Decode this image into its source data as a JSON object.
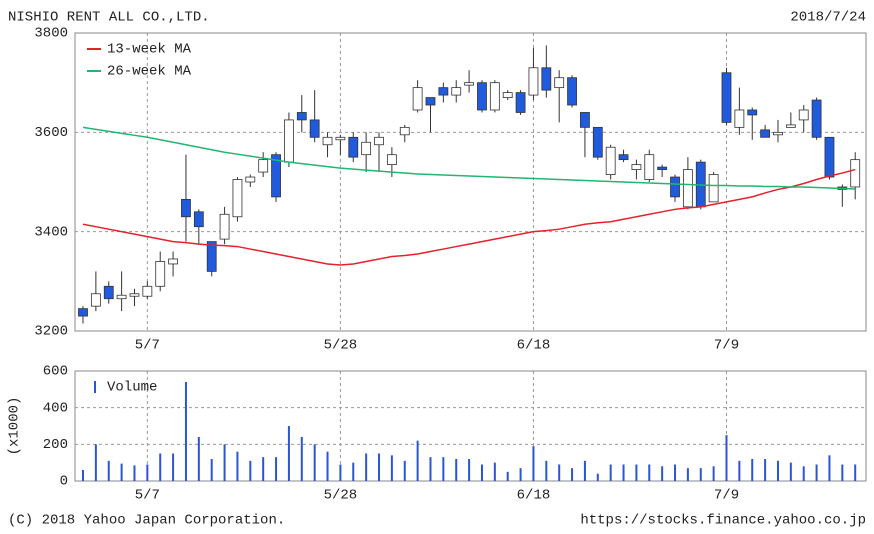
{
  "chart_data": [
    {
      "type": "candlestick",
      "title": "NISHIO RENT ALL CO.,LTD.",
      "date": "2018/7/24",
      "categories": [
        null,
        null,
        null,
        null,
        null,
        "5/7",
        null,
        null,
        null,
        null,
        null,
        null,
        null,
        null,
        null,
        null,
        null,
        null,
        null,
        null,
        "5/28",
        null,
        null,
        null,
        null,
        null,
        null,
        null,
        null,
        null,
        null,
        null,
        null,
        null,
        null,
        "6/18",
        null,
        null,
        null,
        null,
        null,
        null,
        null,
        null,
        null,
        null,
        null,
        null,
        null,
        null,
        "7/9",
        null,
        null,
        null,
        null,
        null,
        null,
        null,
        null,
        null,
        null
      ],
      "open": [
        3245,
        3250,
        3290,
        3265,
        3270,
        3270,
        3290,
        3335,
        3465,
        3440,
        3380,
        3385,
        3430,
        3500,
        3520,
        3555,
        3540,
        3640,
        3625,
        3575,
        3585,
        3590,
        3555,
        3575,
        3535,
        3595,
        3645,
        3670,
        3690,
        3675,
        3695,
        3700,
        3645,
        3670,
        3680,
        3675,
        3730,
        3690,
        3710,
        3640,
        3610,
        3515,
        3555,
        3525,
        3505,
        3530,
        3510,
        3450,
        3540,
        3460,
        3720,
        3610,
        3645,
        3605,
        3595,
        3610,
        3625,
        3665,
        3590,
        3490,
        3490
      ],
      "high": [
        3250,
        3320,
        3300,
        3320,
        3285,
        3300,
        3360,
        3360,
        3555,
        3445,
        3380,
        3450,
        3510,
        3515,
        3560,
        3560,
        3640,
        3675,
        3685,
        3600,
        3595,
        3600,
        3600,
        3600,
        3570,
        3615,
        3705,
        3670,
        3700,
        3705,
        3725,
        3705,
        3705,
        3685,
        3685,
        3770,
        3775,
        3725,
        3715,
        3640,
        3610,
        3575,
        3565,
        3545,
        3565,
        3535,
        3515,
        3550,
        3545,
        3520,
        3730,
        3690,
        3650,
        3615,
        3625,
        3640,
        3655,
        3670,
        3590,
        3495,
        3560
      ],
      "low": [
        3215,
        3240,
        3255,
        3240,
        3250,
        3265,
        3280,
        3310,
        3380,
        3375,
        3310,
        3375,
        3420,
        3490,
        3510,
        3460,
        3530,
        3600,
        3580,
        3550,
        3555,
        3540,
        3520,
        3520,
        3510,
        3580,
        3640,
        3600,
        3660,
        3660,
        3680,
        3640,
        3640,
        3665,
        3635,
        3665,
        3670,
        3620,
        3650,
        3550,
        3545,
        3505,
        3540,
        3505,
        3500,
        3510,
        3460,
        3445,
        3445,
        3460,
        3615,
        3595,
        3585,
        3595,
        3580,
        3610,
        3600,
        3585,
        3505,
        3450,
        3465
      ],
      "close": [
        3230,
        3275,
        3265,
        3272,
        3275,
        3290,
        3340,
        3345,
        3430,
        3410,
        3320,
        3435,
        3505,
        3510,
        3545,
        3470,
        3625,
        3625,
        3590,
        3590,
        3590,
        3550,
        3580,
        3590,
        3555,
        3610,
        3690,
        3655,
        3675,
        3690,
        3700,
        3645,
        3700,
        3680,
        3640,
        3730,
        3685,
        3710,
        3655,
        3610,
        3550,
        3570,
        3545,
        3535,
        3555,
        3525,
        3470,
        3525,
        3450,
        3515,
        3620,
        3645,
        3635,
        3590,
        3600,
        3615,
        3645,
        3590,
        3510,
        3485,
        3545
      ],
      "up_color": "#ffffff",
      "down_color": "#1f5bdc",
      "series": [
        {
          "name": "13-week MA",
          "color": "#e8202a",
          "values": [
            3415,
            3410,
            3405,
            3400,
            3395,
            3390,
            3385,
            3380,
            3378,
            3375,
            3373,
            3372,
            3370,
            3365,
            3360,
            3355,
            3350,
            3345,
            3340,
            3335,
            3333,
            3335,
            3340,
            3345,
            3350,
            3352,
            3355,
            3360,
            3365,
            3370,
            3375,
            3380,
            3385,
            3390,
            3395,
            3400,
            3402,
            3405,
            3410,
            3415,
            3418,
            3420,
            3425,
            3430,
            3435,
            3440,
            3445,
            3448,
            3450,
            3455,
            3460,
            3465,
            3470,
            3478,
            3485,
            3490,
            3497,
            3505,
            3512,
            3518,
            3525
          ]
        },
        {
          "name": "26-week MA",
          "color": "#22b573",
          "values": [
            3610,
            3606,
            3602,
            3598,
            3594,
            3590,
            3585,
            3580,
            3575,
            3570,
            3565,
            3560,
            3556,
            3552,
            3548,
            3544,
            3540,
            3537,
            3534,
            3531,
            3528,
            3526,
            3524,
            3522,
            3520,
            3518,
            3516,
            3515,
            3514,
            3513,
            3512,
            3511,
            3510,
            3509,
            3508,
            3507,
            3506,
            3505,
            3504,
            3503,
            3502,
            3501,
            3500,
            3499,
            3498,
            3497,
            3496,
            3495,
            3494,
            3493,
            3493,
            3492,
            3492,
            3491,
            3491,
            3490,
            3490,
            3489,
            3488,
            3487,
            3486
          ]
        }
      ],
      "ylim": [
        3200,
        3800
      ],
      "yticks": [
        3200,
        3400,
        3600,
        3800
      ],
      "grid": true
    },
    {
      "type": "bar",
      "y_label": "(x1000)",
      "categories": [
        null,
        null,
        null,
        null,
        null,
        "5/7",
        null,
        null,
        null,
        null,
        null,
        null,
        null,
        null,
        null,
        null,
        null,
        null,
        null,
        null,
        "5/28",
        null,
        null,
        null,
        null,
        null,
        null,
        null,
        null,
        null,
        null,
        null,
        null,
        null,
        null,
        "6/18",
        null,
        null,
        null,
        null,
        null,
        null,
        null,
        null,
        null,
        null,
        null,
        null,
        null,
        null,
        "7/9",
        null,
        null,
        null,
        null,
        null,
        null,
        null,
        null,
        null,
        null
      ],
      "series": [
        {
          "name": "Volume",
          "color": "#2a55d6",
          "values": [
            60,
            200,
            110,
            95,
            85,
            90,
            150,
            150,
            540,
            240,
            120,
            200,
            160,
            110,
            130,
            130,
            300,
            240,
            200,
            160,
            90,
            100,
            150,
            150,
            140,
            110,
            220,
            130,
            130,
            120,
            120,
            90,
            100,
            50,
            70,
            190,
            110,
            90,
            70,
            110,
            40,
            90,
            90,
            90,
            90,
            80,
            90,
            70,
            70,
            80,
            250,
            110,
            120,
            120,
            110,
            100,
            80,
            90,
            140,
            90,
            90
          ]
        }
      ],
      "ylim": [
        0,
        600
      ],
      "yticks": [
        0,
        200,
        400,
        600
      ],
      "grid": true
    }
  ],
  "footer": {
    "copyright": "(C) 2018 Yahoo Japan Corporation.",
    "url": "https://stocks.finance.yahoo.co.jp"
  }
}
